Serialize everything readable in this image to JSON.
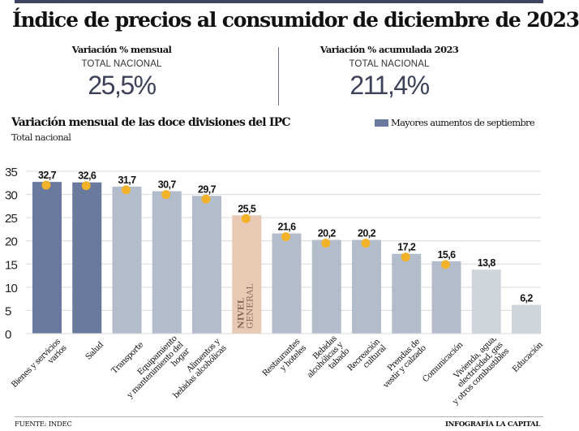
{
  "header": {
    "title": "Índice de precios al consumidor de diciembre de 2023"
  },
  "kpis": [
    {
      "label": "Variación % mensual",
      "sublabel": "TOTAL NACIONAL",
      "value": "25,5%"
    },
    {
      "label": "Variación % acumulada 2023",
      "sublabel": "TOTAL NACIONAL",
      "value": "211,4%"
    }
  ],
  "colors": {
    "highlight": "#6a7a9e",
    "normal": "#b3bccb",
    "light": "#d0d5dc",
    "general": "#e8c9b4",
    "dot": "#f2b229",
    "grid": "#d9d9d9",
    "general_text": "#8a6a58"
  },
  "chart_data": {
    "type": "bar",
    "title": "Variación mensual de las doce divisiones del IPC",
    "subtitle": "Total nacional",
    "xlabel": "",
    "ylabel": "",
    "ylim": [
      0,
      35
    ],
    "yticks": [
      0,
      5,
      10,
      15,
      20,
      25,
      30,
      35
    ],
    "grid": true,
    "legend": {
      "position": "top-right",
      "entries": [
        {
          "label": "Mayores aumentos de septiembre",
          "style": "highlight"
        }
      ]
    },
    "categories": [
      "Bienes y servicios varios",
      "Salud",
      "Transporte",
      "Equipamiento y mantenimiento del hogar",
      "Alimentos y bebidas alcohólicas",
      "Nivel general",
      "Restaurantes y hoteles",
      "Bebidas alcohólicas y tabado",
      "Recreación cultural",
      "Prendas de vestir y calzado",
      "Comunicación",
      "Vivienda, agua, electricidad, gas y otros combustibles",
      "Educación"
    ],
    "tick_labels": [
      [
        "Bienes y servicios",
        "varios"
      ],
      [
        "Salud"
      ],
      [
        "Transporte"
      ],
      [
        "Equipamiento",
        "y mantenimiento del",
        "hogar"
      ],
      [
        "Alimentos y",
        "bebidas alcohólicas"
      ],
      [],
      [
        "Restaurantes",
        "y hoteles"
      ],
      [
        "Bebidas",
        "alcohólicas y",
        "tabado"
      ],
      [
        "Recreación",
        "cultural"
      ],
      [
        "Prendas de",
        "vestir y calzado"
      ],
      [
        "Comunicación"
      ],
      [
        "Vivienda, agua,",
        "electricidad, gas",
        "y otros combustibles"
      ],
      [
        "Educación"
      ]
    ],
    "values": [
      32.7,
      32.6,
      31.7,
      30.7,
      29.7,
      25.5,
      21.6,
      20.2,
      20.2,
      17.2,
      15.6,
      13.8,
      6.2
    ],
    "value_labels": [
      "32,7",
      "32,6",
      "31,7",
      "30,7",
      "29,7",
      "25,5",
      "21,6",
      "20,2",
      "20,2",
      "17,2",
      "15,6",
      "13,8",
      "6,2"
    ],
    "styles": [
      "highlight",
      "highlight",
      "normal",
      "normal",
      "normal",
      "general",
      "normal",
      "normal",
      "normal",
      "normal",
      "normal",
      "light",
      "light"
    ],
    "markers": [
      true,
      true,
      true,
      true,
      true,
      true,
      true,
      true,
      true,
      true,
      true,
      false,
      false
    ],
    "inside_label": {
      "index": 5,
      "lines": [
        "NIVEL",
        "GENERAL"
      ]
    }
  },
  "footer": {
    "source": "FUENTE: INDEC",
    "credit": "INFOGRAFÍA LA CAPITAL"
  }
}
